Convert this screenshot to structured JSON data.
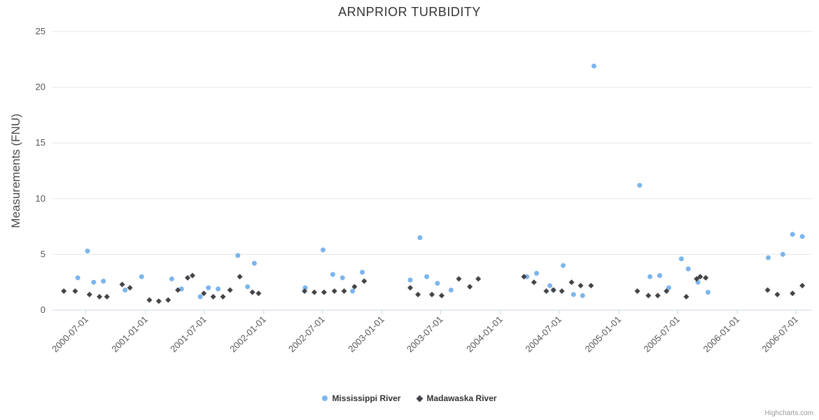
{
  "credits": "Highcharts.com",
  "chart_data": {
    "type": "scatter",
    "title": "ARNPRIOR TURBIDITY",
    "xlabel": "",
    "ylabel": "Measurements (FNU)",
    "ylim": [
      0,
      25
    ],
    "yticks": [
      0,
      5,
      10,
      15,
      20,
      25
    ],
    "xticks": [
      "2000-07-01",
      "2001-01-01",
      "2001-07-01",
      "2002-01-01",
      "2002-07-01",
      "2003-01-01",
      "2003-07-01",
      "2004-01-01",
      "2004-07-01",
      "2005-01-01",
      "2005-07-01",
      "2006-01-01",
      "2006-07-01"
    ],
    "x_range": [
      "2000-03-20",
      "2006-08-20"
    ],
    "grid": "horizontal-only",
    "legend_position": "bottom-center",
    "background": "#ffffff",
    "colors": {
      "grid": "#e6e6e6",
      "axis_line": "#ccd6eb",
      "tick_label": "#555555",
      "axis_title": "#4a4a4a",
      "title": "#333333",
      "legend_label": "#333333",
      "credits": "#999999"
    },
    "series": [
      {
        "name": "Mississippi River",
        "color": "#7cb5ec",
        "marker": "circle",
        "points": [
          [
            "2000-06-06",
            2.9
          ],
          [
            "2000-07-06",
            5.3
          ],
          [
            "2000-07-25",
            2.5
          ],
          [
            "2000-08-24",
            2.6
          ],
          [
            "2000-10-30",
            1.8
          ],
          [
            "2000-12-20",
            3.0
          ],
          [
            "2001-03-23",
            2.8
          ],
          [
            "2001-04-22",
            1.9
          ],
          [
            "2001-06-19",
            1.2
          ],
          [
            "2001-07-14",
            2.0
          ],
          [
            "2001-08-13",
            1.9
          ],
          [
            "2001-10-13",
            4.9
          ],
          [
            "2001-11-12",
            2.1
          ],
          [
            "2001-12-03",
            4.2
          ],
          [
            "2002-05-09",
            2.0
          ],
          [
            "2002-07-03",
            5.4
          ],
          [
            "2002-08-02",
            3.2
          ],
          [
            "2002-09-01",
            2.9
          ],
          [
            "2002-10-02",
            1.7
          ],
          [
            "2002-11-01",
            3.4
          ],
          [
            "2003-03-29",
            2.7
          ],
          [
            "2003-04-28",
            6.5
          ],
          [
            "2003-05-19",
            3.0
          ],
          [
            "2003-06-21",
            2.4
          ],
          [
            "2003-08-02",
            1.8
          ],
          [
            "2004-03-23",
            3.0
          ],
          [
            "2004-04-22",
            3.3
          ],
          [
            "2004-06-02",
            2.2
          ],
          [
            "2004-06-13",
            1.8
          ],
          [
            "2004-07-13",
            4.0
          ],
          [
            "2004-08-14",
            1.4
          ],
          [
            "2004-09-11",
            1.3
          ],
          [
            "2004-10-16",
            21.9
          ],
          [
            "2005-03-06",
            11.2
          ],
          [
            "2005-04-07",
            3.0
          ],
          [
            "2005-05-07",
            3.1
          ],
          [
            "2005-06-04",
            2.0
          ],
          [
            "2005-07-13",
            4.6
          ],
          [
            "2005-08-03",
            3.7
          ],
          [
            "2005-09-02",
            2.5
          ],
          [
            "2005-10-03",
            1.6
          ],
          [
            "2006-04-07",
            4.7
          ],
          [
            "2006-05-22",
            5.0
          ],
          [
            "2006-06-21",
            6.8
          ],
          [
            "2006-07-21",
            6.6
          ]
        ]
      },
      {
        "name": "Madawaska River",
        "color": "#434348",
        "marker": "diamond",
        "points": [
          [
            "2000-04-24",
            1.7
          ],
          [
            "2000-05-29",
            1.7
          ],
          [
            "2000-07-12",
            1.4
          ],
          [
            "2000-08-12",
            1.2
          ],
          [
            "2000-09-04",
            1.2
          ],
          [
            "2000-10-21",
            2.3
          ],
          [
            "2000-11-14",
            2.0
          ],
          [
            "2001-01-13",
            0.9
          ],
          [
            "2001-02-11",
            0.8
          ],
          [
            "2001-03-12",
            0.9
          ],
          [
            "2001-04-11",
            1.8
          ],
          [
            "2001-05-11",
            2.9
          ],
          [
            "2001-05-26",
            3.1
          ],
          [
            "2001-06-30",
            1.5
          ],
          [
            "2001-07-29",
            1.2
          ],
          [
            "2001-08-28",
            1.2
          ],
          [
            "2001-09-19",
            1.8
          ],
          [
            "2001-10-19",
            3.0
          ],
          [
            "2001-11-27",
            1.6
          ],
          [
            "2001-12-16",
            1.5
          ],
          [
            "2002-05-07",
            1.7
          ],
          [
            "2002-06-06",
            1.6
          ],
          [
            "2002-07-06",
            1.6
          ],
          [
            "2002-08-07",
            1.7
          ],
          [
            "2002-09-06",
            1.7
          ],
          [
            "2002-10-08",
            2.1
          ],
          [
            "2002-11-07",
            2.6
          ],
          [
            "2003-03-29",
            2.0
          ],
          [
            "2003-04-22",
            1.4
          ],
          [
            "2003-06-04",
            1.4
          ],
          [
            "2003-07-04",
            1.3
          ],
          [
            "2003-08-26",
            2.8
          ],
          [
            "2003-09-29",
            2.1
          ],
          [
            "2003-10-25",
            2.8
          ],
          [
            "2004-03-14",
            3.0
          ],
          [
            "2004-04-14",
            2.5
          ],
          [
            "2004-05-22",
            1.7
          ],
          [
            "2004-06-13",
            1.8
          ],
          [
            "2004-07-09",
            1.7
          ],
          [
            "2004-08-08",
            2.5
          ],
          [
            "2004-09-05",
            2.2
          ],
          [
            "2004-10-07",
            2.2
          ],
          [
            "2005-02-27",
            1.7
          ],
          [
            "2005-04-02",
            1.3
          ],
          [
            "2005-05-01",
            1.3
          ],
          [
            "2005-05-28",
            1.7
          ],
          [
            "2005-07-28",
            1.2
          ],
          [
            "2005-08-29",
            2.8
          ],
          [
            "2005-09-09",
            3.0
          ],
          [
            "2005-09-26",
            2.9
          ],
          [
            "2006-04-05",
            1.8
          ],
          [
            "2006-05-05",
            1.4
          ],
          [
            "2006-06-21",
            1.5
          ],
          [
            "2006-07-21",
            2.2
          ]
        ]
      }
    ]
  }
}
